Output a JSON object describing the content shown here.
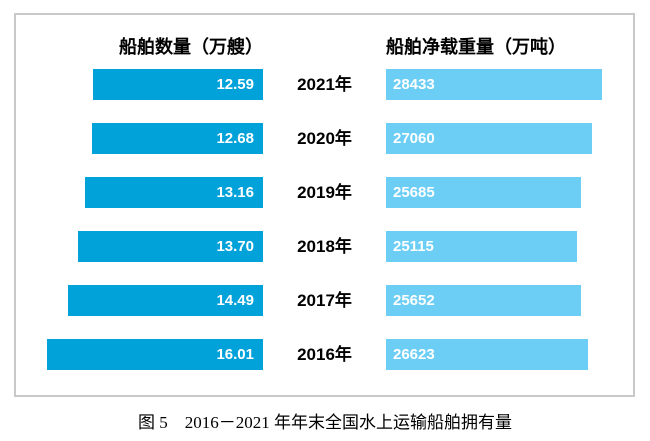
{
  "chart": {
    "left_header": "船舶数量（万艘）",
    "right_header": "船舶净载重量（万吨）",
    "caption": "图 5　2016－2021 年年末全国水上运输船舶拥有量",
    "colors": {
      "left_bar": "#00a2d9",
      "right_bar": "#6dcef5",
      "value_text": "#ffffff",
      "frame_border": "#c9c9c9"
    }
  },
  "chart_data": {
    "type": "bar",
    "layout": "horizontal-tornado",
    "title": "图 5　2016－2021 年年末全国水上运输船舶拥有量",
    "categories": [
      "2021年",
      "2020年",
      "2019年",
      "2018年",
      "2017年",
      "2016年"
    ],
    "series": [
      {
        "name": "船舶数量（万艘）",
        "side": "left",
        "values": [
          12.59,
          12.68,
          13.16,
          13.7,
          14.49,
          16.01
        ],
        "labels": [
          "12.59",
          "12.68",
          "13.16",
          "13.70",
          "14.49",
          "16.01"
        ]
      },
      {
        "name": "船舶净载重量（万吨）",
        "side": "right",
        "values": [
          28433,
          27060,
          25685,
          25115,
          25652,
          26623
        ],
        "labels": [
          "28433",
          "27060",
          "25685",
          "25115",
          "25652",
          "26623"
        ]
      }
    ],
    "value_labels_shown": true,
    "grid": false,
    "axes_shown": false
  }
}
